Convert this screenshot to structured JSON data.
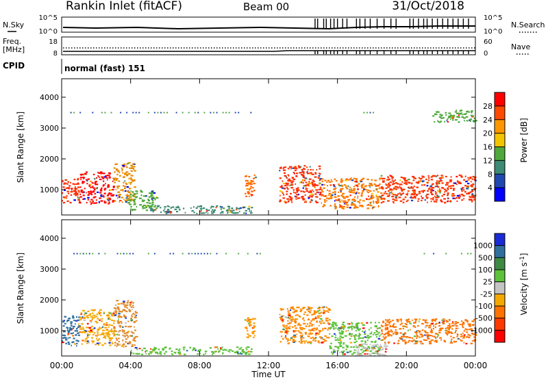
{
  "header": {
    "title": "Rankin Inlet (fitACF)",
    "beam": "Beam 00",
    "date": "31/Oct/2018"
  },
  "noise_panel": {
    "left_label": "N.Sky",
    "right_label": "N.Search",
    "left_ticks": [
      "10^5",
      "10^0"
    ],
    "right_ticks": [
      "10^5",
      "10^0"
    ],
    "spike_hours": [
      14.7,
      14.85,
      15.2,
      15.35,
      15.6,
      15.8,
      16.0,
      16.3,
      16.55,
      17.1,
      17.3,
      17.6,
      17.9,
      18.3,
      18.7,
      19.1,
      19.4,
      20.2,
      20.4,
      20.7,
      21.0,
      21.2,
      21.5,
      21.8,
      22.1,
      22.4,
      22.7,
      23.0,
      23.3,
      23.6
    ]
  },
  "freq_panel": {
    "left_label": "Freq.",
    "left_unit": "[MHz]",
    "right_label": "Nave",
    "left_ticks": [
      "18",
      "8"
    ],
    "right_ticks": [
      "60",
      "0"
    ]
  },
  "cpid": {
    "label": "CPID",
    "value": "normal (fast) 151"
  },
  "time_axis": {
    "ticks": [
      "00:00",
      "04:00",
      "08:00",
      "12:00",
      "16:00",
      "20:00",
      "00:00"
    ],
    "label": "Time UT"
  },
  "chart_data": [
    {
      "type": "heatmap",
      "panel": "power",
      "ylabel": "Slant Range [km]",
      "yticks": [
        1000,
        2000,
        3000,
        4000
      ],
      "ylim": [
        180,
        4600
      ],
      "xlim": [
        0,
        24
      ],
      "colorbar": {
        "label": "Power [dB]",
        "ticks": [
          "28",
          "24",
          "20",
          "16",
          "12",
          "8",
          "4"
        ],
        "colors": [
          "#ff0000",
          "#ff4a00",
          "#ff9600",
          "#f5c400",
          "#4fa83c",
          "#3e8a74",
          "#2048b0",
          "#0000ff"
        ]
      },
      "regions": [
        {
          "x0": 0.0,
          "x1": 1.0,
          "y0": 600,
          "y1": 1400,
          "fill": "#ff2a00"
        },
        {
          "x0": 1.0,
          "x1": 3.0,
          "y0": 550,
          "y1": 1600,
          "fill": "#ff0000"
        },
        {
          "x0": 3.0,
          "x1": 4.2,
          "y0": 600,
          "y1": 1900,
          "fill": "#e68a00"
        },
        {
          "x0": 3.8,
          "x1": 5.5,
          "y0": 350,
          "y1": 1000,
          "fill": "#4fa83c"
        },
        {
          "x0": 5.0,
          "x1": 11.0,
          "y0": 250,
          "y1": 500,
          "fill": "#3e8a74"
        },
        {
          "x0": 10.6,
          "x1": 11.2,
          "y0": 800,
          "y1": 1500,
          "fill": "#ff6600"
        },
        {
          "x0": 12.6,
          "x1": 15.0,
          "y0": 600,
          "y1": 1800,
          "fill": "#ff2a00"
        },
        {
          "x0": 15.0,
          "x1": 18.5,
          "y0": 400,
          "y1": 1400,
          "fill": "#ff7a00"
        },
        {
          "x0": 18.5,
          "x1": 24.0,
          "y0": 600,
          "y1": 1500,
          "fill": "#ff3000"
        },
        {
          "x0": 21.5,
          "x1": 24.0,
          "y0": 3200,
          "y1": 3600,
          "fill": "#4fa83c"
        }
      ],
      "dotted_range_km": 3500,
      "dotted_spans": [
        [
          0.5,
          11.5
        ],
        [
          17.5,
          18.5
        ]
      ]
    },
    {
      "type": "heatmap",
      "panel": "velocity",
      "ylabel": "Slant Range [km]",
      "yticks": [
        1000,
        2000,
        3000,
        4000
      ],
      "ylim": [
        180,
        4600
      ],
      "xlim": [
        0,
        24
      ],
      "colorbar": {
        "label": "Velocity [m s^-1]",
        "ticks": [
          "1000",
          "500",
          "100",
          "25",
          "-25",
          "-100",
          "-500",
          "-1000"
        ],
        "colors": [
          "#1a2bd6",
          "#2f6f9e",
          "#3e8a44",
          "#5cc23a",
          "#c4c4c4",
          "#f5a800",
          "#ff7200",
          "#ff3a00",
          "#ff0000"
        ]
      },
      "regions": [
        {
          "x0": 0.0,
          "x1": 1.0,
          "y0": 500,
          "y1": 1500,
          "fill": "#2f6f9e"
        },
        {
          "x0": 1.0,
          "x1": 3.0,
          "y0": 550,
          "y1": 1700,
          "fill": "#f5a800"
        },
        {
          "x0": 3.0,
          "x1": 4.3,
          "y0": 500,
          "y1": 2000,
          "fill": "#e28a2a"
        },
        {
          "x0": 4.0,
          "x1": 11.0,
          "y0": 250,
          "y1": 500,
          "fill": "#5cc23a"
        },
        {
          "x0": 10.6,
          "x1": 11.2,
          "y0": 800,
          "y1": 1500,
          "fill": "#ff9a00"
        },
        {
          "x0": 12.6,
          "x1": 15.5,
          "y0": 600,
          "y1": 1800,
          "fill": "#ff8a00"
        },
        {
          "x0": 15.5,
          "x1": 18.5,
          "y0": 250,
          "y1": 1300,
          "fill": "#5cc23a"
        },
        {
          "x0": 17.0,
          "x1": 18.8,
          "y0": 200,
          "y1": 600,
          "fill": "#c4c4c4"
        },
        {
          "x0": 18.5,
          "x1": 24.0,
          "y0": 600,
          "y1": 1400,
          "fill": "#ff7200"
        }
      ],
      "dotted_range_km": 3500,
      "dotted_spans": [
        [
          0.5,
          11.5
        ],
        [
          21.0,
          24.0
        ]
      ]
    }
  ]
}
